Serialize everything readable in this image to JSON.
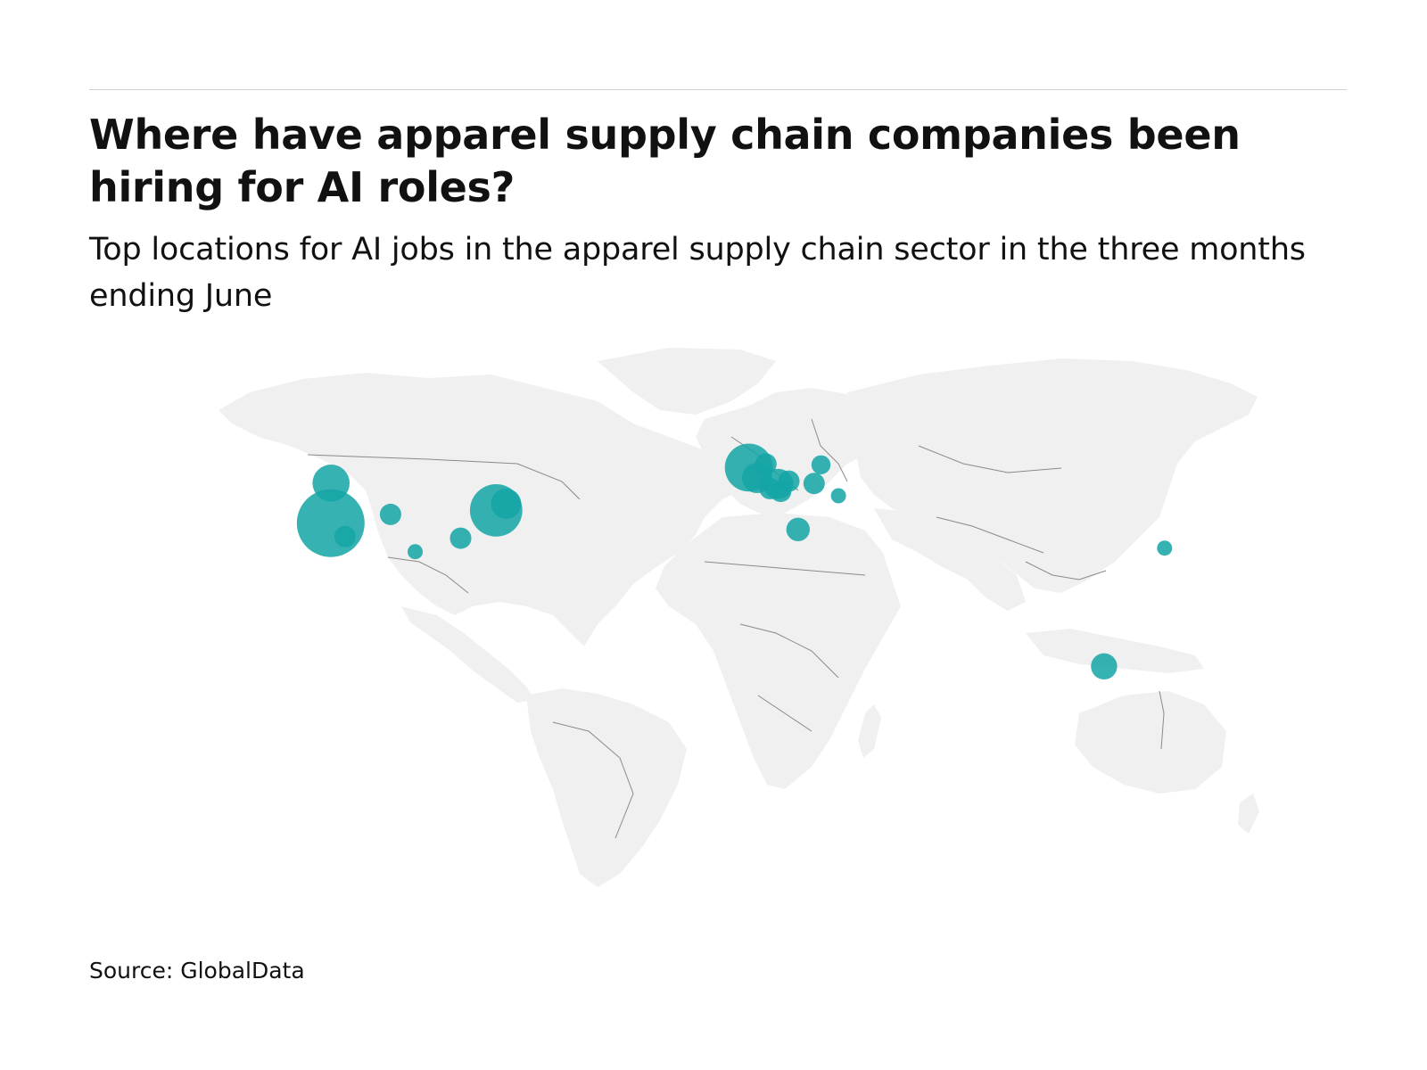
{
  "header": {
    "title": "Where have apparel supply chain companies been hiring for AI roles?",
    "subtitle": "Top locations for AI jobs in the apparel supply chain sector in the three months ending June"
  },
  "footer": {
    "source": "Source: GlobalData"
  },
  "colors": {
    "bubble": "#14a5a6",
    "overlap": "#0b4f53",
    "land": "#f0f0f0",
    "borders": "#8a8a8a",
    "rule": "#d0d0d0"
  },
  "chart_data": {
    "type": "bubble-map",
    "projection": "world, equirectangular-like",
    "legend": "none",
    "points": [
      {
        "lon": -122.4,
        "lat": 37.5,
        "size": 10
      },
      {
        "lon": -122.3,
        "lat": 47.6,
        "size": 3
      },
      {
        "lon": -118.2,
        "lat": 34.1,
        "size": 1
      },
      {
        "lon": -104.9,
        "lat": 39.7,
        "size": 1
      },
      {
        "lon": -97.7,
        "lat": 30.3,
        "size": 0.5
      },
      {
        "lon": -74.0,
        "lat": 40.7,
        "size": 6
      },
      {
        "lon": -71.1,
        "lat": 42.4,
        "size": 2
      },
      {
        "lon": -84.4,
        "lat": 33.7,
        "size": 1
      },
      {
        "lon": -0.1,
        "lat": 51.5,
        "size": 5
      },
      {
        "lon": 2.3,
        "lat": 48.9,
        "size": 2
      },
      {
        "lon": 4.9,
        "lat": 52.4,
        "size": 1
      },
      {
        "lon": 6.1,
        "lat": 46.2,
        "size": 1
      },
      {
        "lon": 8.5,
        "lat": 47.4,
        "size": 2
      },
      {
        "lon": 9.2,
        "lat": 45.5,
        "size": 1
      },
      {
        "lon": 11.6,
        "lat": 48.1,
        "size": 1
      },
      {
        "lon": 14.3,
        "lat": 35.9,
        "size": 1.2
      },
      {
        "lon": 19.0,
        "lat": 47.5,
        "size": 1
      },
      {
        "lon": 21.0,
        "lat": 52.2,
        "size": 0.8
      },
      {
        "lon": 26.1,
        "lat": 44.4,
        "size": 0.5
      },
      {
        "lon": 121.5,
        "lat": 31.2,
        "size": 0.5
      },
      {
        "lon": 103.8,
        "lat": 1.35,
        "size": 1.5
      }
    ]
  }
}
